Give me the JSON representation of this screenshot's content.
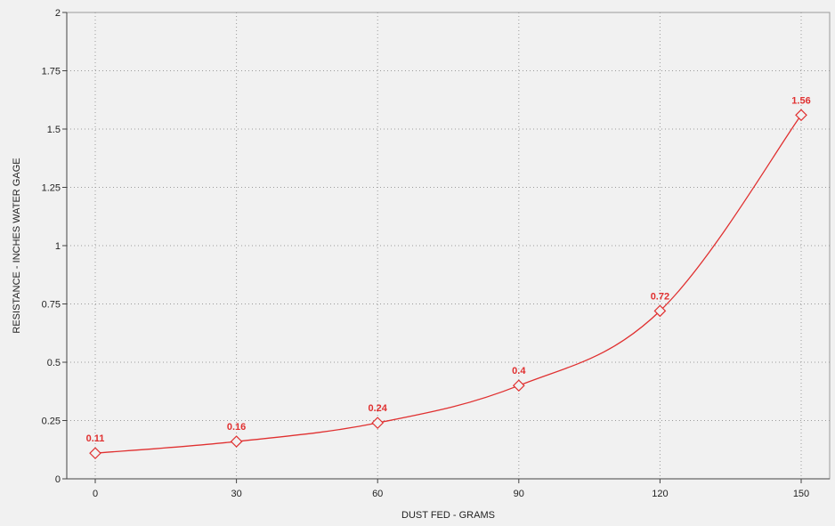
{
  "chart_data": {
    "type": "line",
    "title": "",
    "xlabel": "DUST FED - GRAMS",
    "ylabel": "RESISTANCE - INCHES WATER GAGE",
    "xlim": [
      0,
      150
    ],
    "ylim": [
      0,
      2
    ],
    "x_ticks": [
      0,
      30,
      60,
      90,
      120,
      150
    ],
    "x_tick_labels": [
      "0",
      "30",
      "60",
      "90",
      "120",
      "150"
    ],
    "y_ticks": [
      0,
      0.25,
      0.5,
      0.75,
      1,
      1.25,
      1.5,
      1.75,
      2
    ],
    "y_tick_labels": [
      "0",
      "0.25",
      "0.5",
      "0.75",
      "1",
      "1.25",
      "1.5",
      "1.75",
      "2"
    ],
    "grid": true,
    "series": [
      {
        "x": [
          0,
          30,
          60,
          90,
          120,
          150
        ],
        "values": [
          0.11,
          0.16,
          0.24,
          0.4,
          0.72,
          1.56
        ],
        "data_labels": [
          "0.11",
          "0.16",
          "0.24",
          "0.4",
          "0.72",
          "1.56"
        ],
        "marker": "diamond",
        "color": "#e03030"
      }
    ]
  },
  "colors": {
    "background": "#f1f1f1",
    "grid": "#9a9a9a",
    "axis": "#444444",
    "series": "#e03030"
  }
}
